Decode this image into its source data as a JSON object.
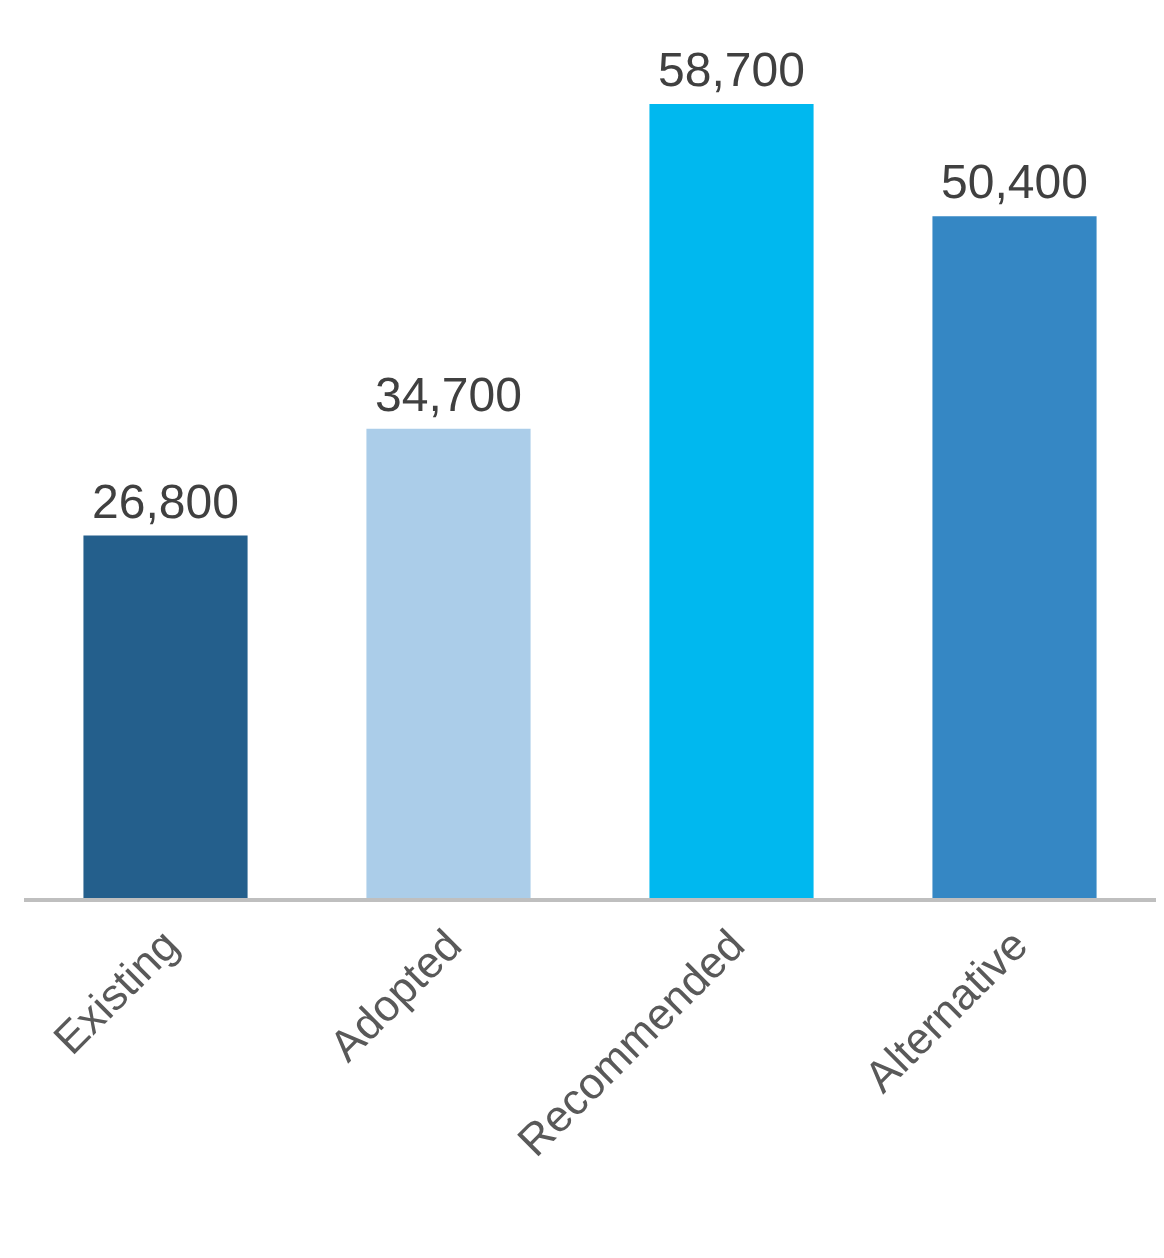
{
  "chart_data": {
    "type": "bar",
    "categories": [
      "Existing",
      "Adopted",
      "Recommended",
      "Alternative"
    ],
    "values": [
      26800,
      34700,
      58700,
      50400
    ],
    "colors": [
      "#245f8c",
      "#abcde9",
      "#00b8ef",
      "#3587c4"
    ],
    "value_labels": [
      "26,800",
      "34,700",
      "58,700",
      "50,400"
    ]
  }
}
